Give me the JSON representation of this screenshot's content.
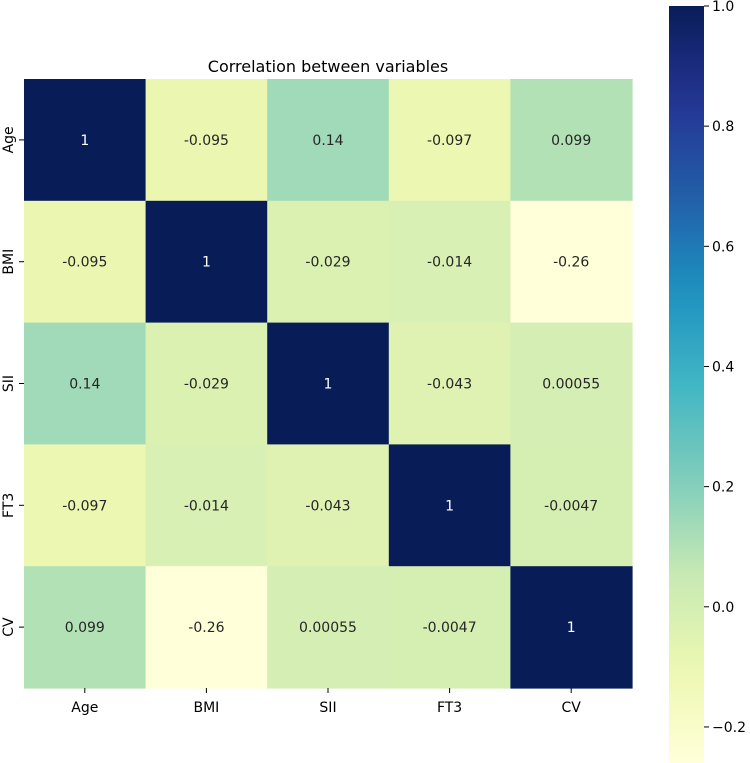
{
  "chart_data": {
    "type": "heatmap",
    "title": "Correlation between variables",
    "xlabel": "",
    "ylabel": "",
    "x_categories": [
      "Age",
      "BMI",
      "SII",
      "FT3",
      "CV"
    ],
    "y_categories": [
      "Age",
      "BMI",
      "SII",
      "FT3",
      "CV"
    ],
    "values": [
      [
        1,
        -0.095,
        0.14,
        -0.097,
        0.099
      ],
      [
        -0.095,
        1,
        -0.029,
        -0.014,
        -0.26
      ],
      [
        0.14,
        -0.029,
        1,
        -0.043,
        0.00055
      ],
      [
        -0.097,
        -0.014,
        -0.043,
        1,
        -0.0047
      ],
      [
        0.099,
        -0.26,
        0.00055,
        -0.0047,
        1
      ]
    ],
    "annotations": [
      [
        "1",
        "-0.095",
        "0.14",
        "-0.097",
        "0.099"
      ],
      [
        "-0.095",
        "1",
        "-0.029",
        "-0.014",
        "-0.26"
      ],
      [
        "0.14",
        "-0.029",
        "1",
        "-0.043",
        "0.00055"
      ],
      [
        "-0.097",
        "-0.014",
        "-0.043",
        "1",
        "-0.0047"
      ],
      [
        "0.099",
        "-0.26",
        "0.00055",
        "-0.0047",
        "1"
      ]
    ],
    "colormap": "YlGnBu",
    "colorbar": {
      "range": [
        -0.26,
        1.0
      ],
      "ticks": [
        -0.2,
        0.0,
        0.2,
        0.4,
        0.6,
        0.8,
        1.0
      ],
      "tick_labels": [
        "−0.2",
        "0.0",
        "0.2",
        "0.4",
        "0.6",
        "0.8",
        "1.0"
      ]
    },
    "grid": false,
    "legend": "colorbar-right"
  }
}
